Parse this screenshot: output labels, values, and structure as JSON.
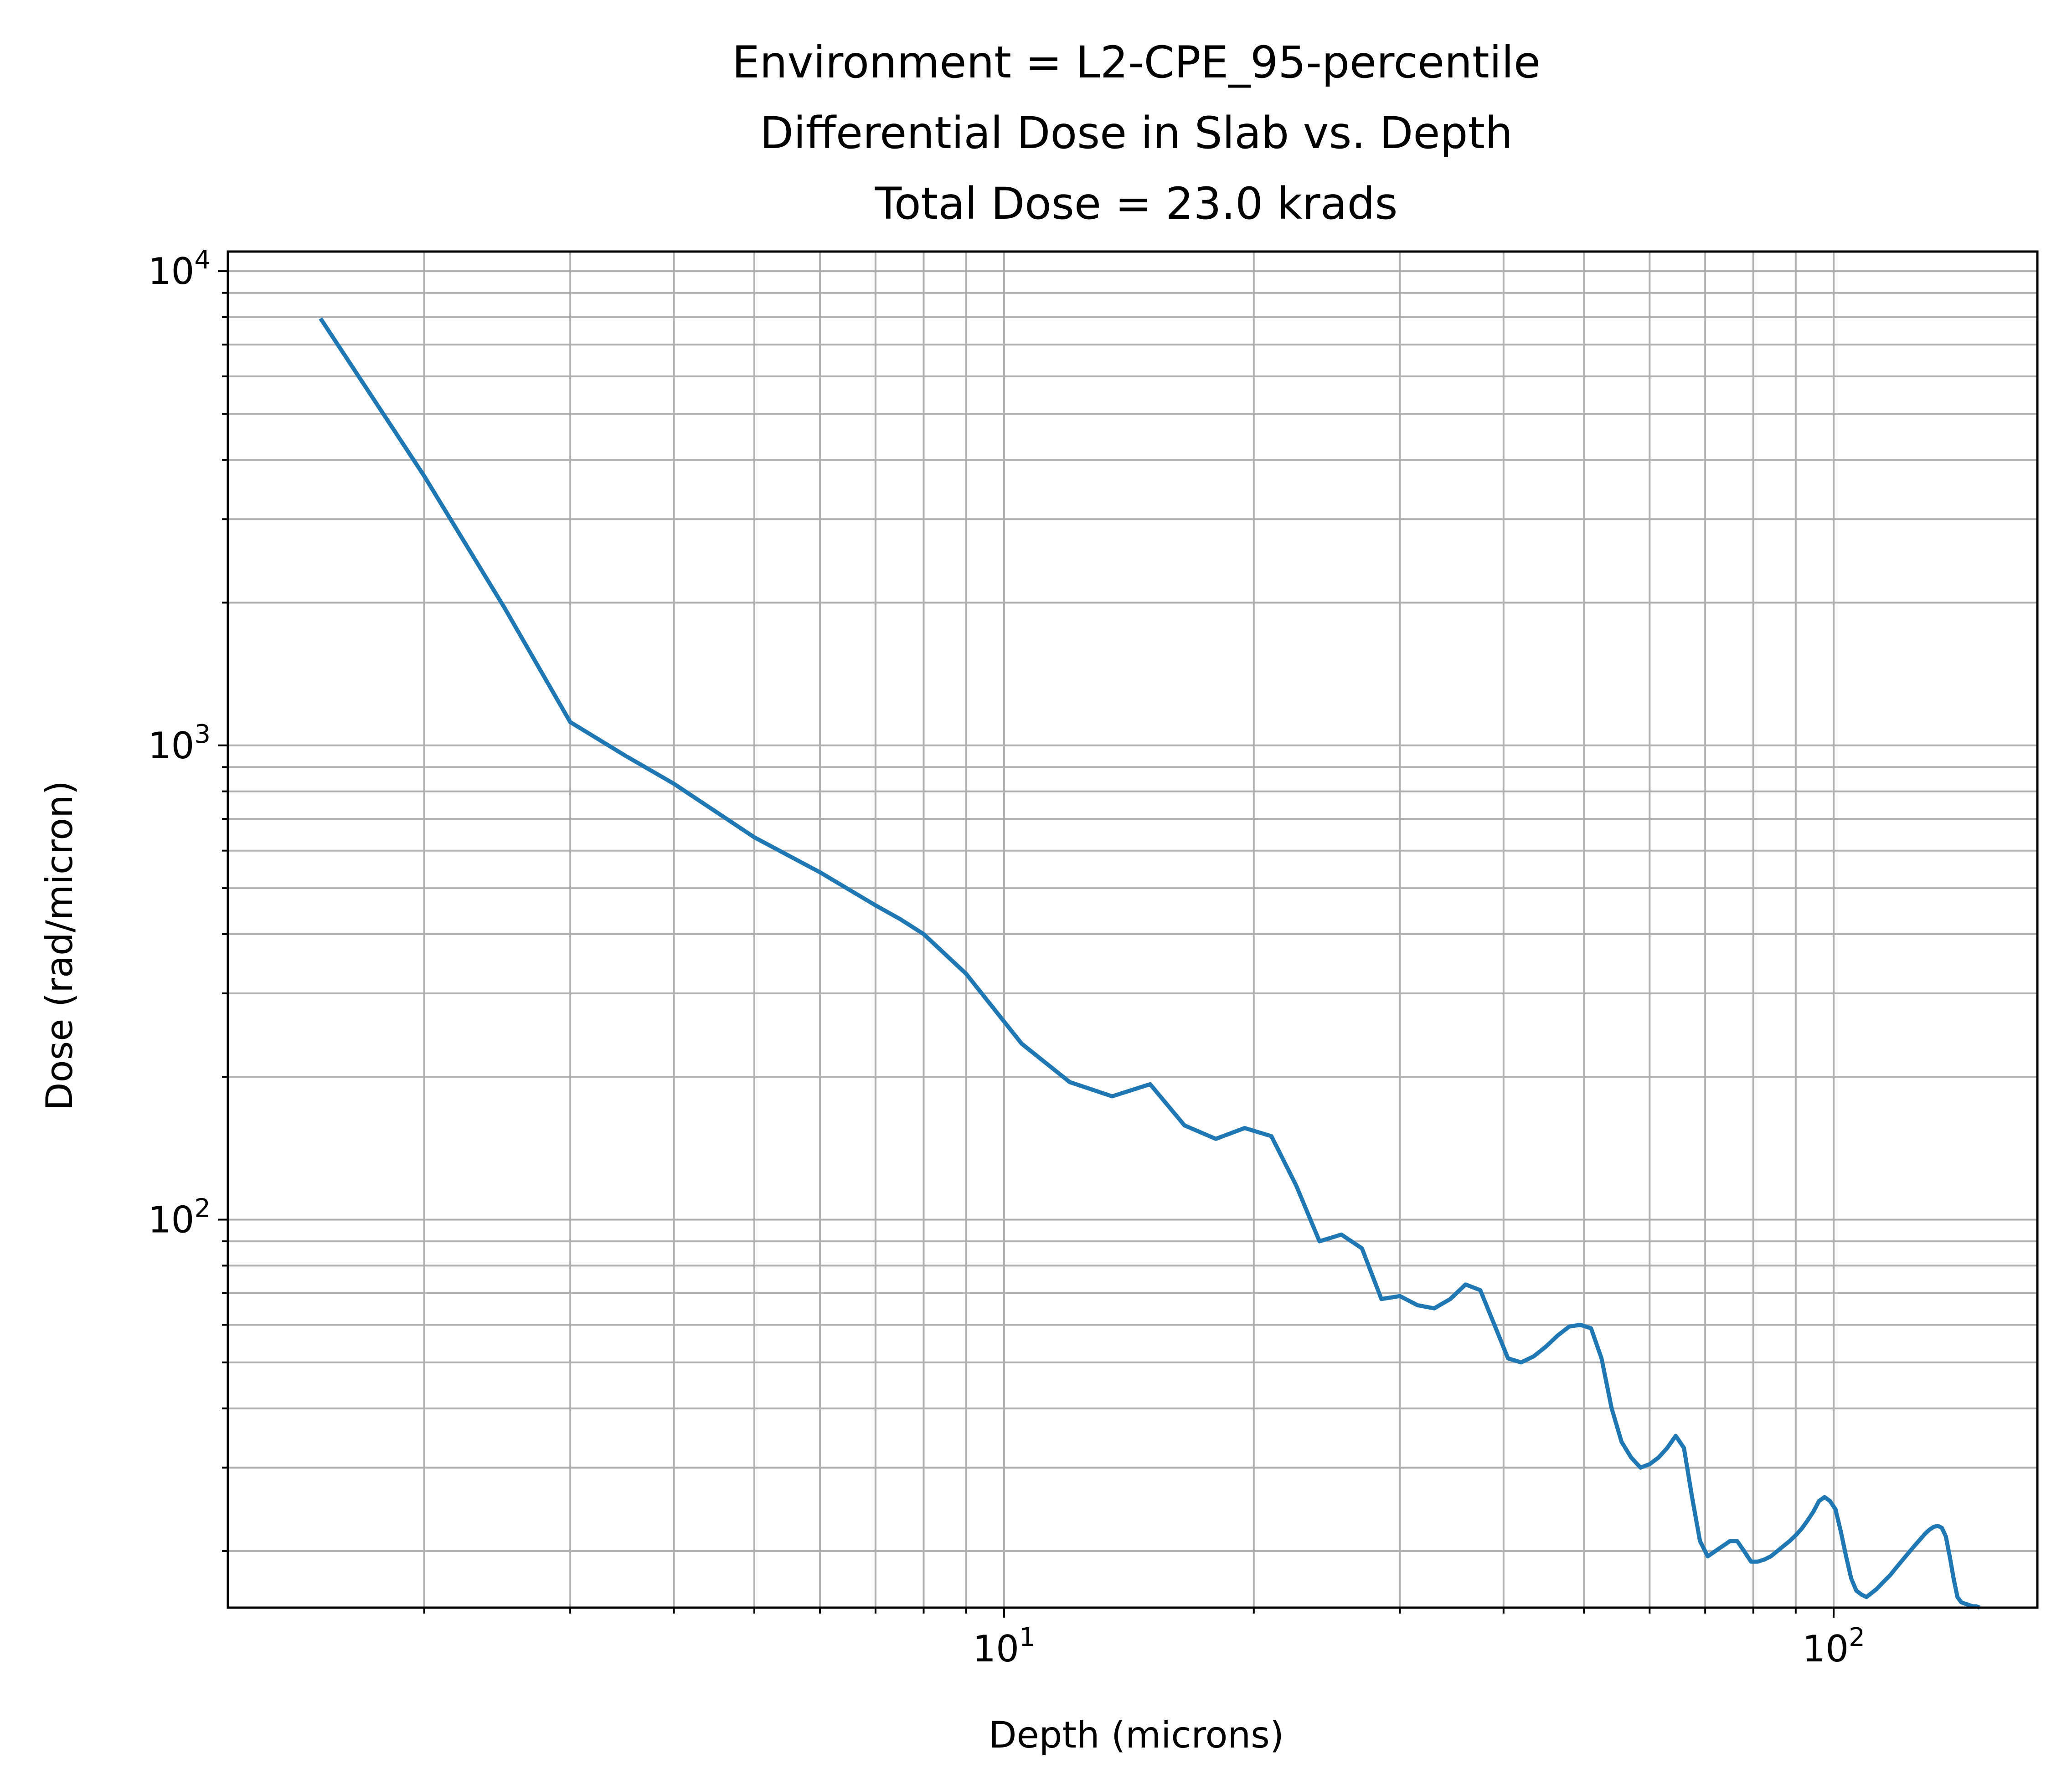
{
  "chart_data": {
    "type": "line",
    "title_lines": [
      "Environment = L2-CPE_95-percentile",
      "Differential Dose in Slab vs. Depth",
      "Total Dose = 23.0 krads"
    ],
    "xlabel": "Depth (microns)",
    "ylabel": "Dose (rad/micron)",
    "xscale": "log",
    "yscale": "log",
    "xlim": [
      1.16,
      176
    ],
    "ylim": [
      15.2,
      11000
    ],
    "grid": "major-and-minor",
    "x_ticks": [
      {
        "value": 10,
        "base": "10",
        "exp": "1"
      },
      {
        "value": 100,
        "base": "10",
        "exp": "2"
      }
    ],
    "y_ticks": [
      {
        "value": 100,
        "base": "10",
        "exp": "2"
      },
      {
        "value": 1000,
        "base": "10",
        "exp": "3"
      },
      {
        "value": 10000,
        "base": "10",
        "exp": "4"
      }
    ],
    "line_color": "#1f77b4",
    "grid_color": "#b0b0b0",
    "series": [
      {
        "x": [
          1.5,
          2.0,
          2.5,
          3.0,
          3.5,
          4.0,
          5.0,
          6.0,
          7.0,
          7.5,
          8.0,
          9.0,
          10.5,
          12.0,
          13.5,
          15.0,
          16.5,
          18.0,
          19.5,
          21.0,
          22.5,
          24.0,
          25.5,
          27.0,
          28.5,
          30.0,
          31.5,
          33.0,
          34.5,
          36.0,
          37.5,
          39.0,
          40.5,
          42.0,
          43.5,
          45.0,
          46.5,
          48.0,
          49.5,
          51.0,
          52.5,
          54.0,
          55.5,
          57.0,
          58.5,
          60.0,
          61.5,
          63.0,
          64.5,
          66.0,
          67.5,
          69.0,
          70.5,
          72.0,
          73.5,
          75.0,
          76.5,
          78.0,
          79.5,
          81.0,
          82.5,
          84.0,
          85.5,
          87.0,
          88.5,
          90.0,
          91.5,
          93.0,
          94.5,
          96.0,
          97.5,
          99.0,
          100.5,
          102.0,
          103.5,
          105.0,
          106.5,
          108.0,
          109.5,
          111.0,
          112.5,
          114.0,
          115.5,
          117.0,
          118.5,
          120.0,
          121.5,
          123.0,
          124.5,
          126.0,
          127.5,
          129.0,
          130.5,
          132.0,
          133.5,
          135.0,
          136.5,
          138.0,
          139.5,
          141.0,
          142.5,
          144.0,
          145.5,
          147.0,
          148.5,
          150.0
        ],
        "y": [
          7950,
          3700,
          1950,
          1120,
          950,
          830,
          640,
          540,
          460,
          430,
          400,
          330,
          235,
          195,
          182,
          193,
          158,
          148,
          156,
          150,
          118,
          90,
          93,
          87,
          68,
          69,
          66,
          65,
          68,
          73,
          71,
          60,
          51,
          50,
          51.5,
          54,
          57,
          59.5,
          60,
          59,
          51,
          40,
          34,
          31.5,
          30,
          30.5,
          31.5,
          33,
          35,
          33,
          26,
          21,
          19.5,
          20,
          20.5,
          21,
          21,
          20,
          19,
          19,
          19.2,
          19.5,
          20,
          20.5,
          21,
          21.6,
          22.3,
          23.2,
          24.2,
          25.5,
          26,
          25.5,
          24.5,
          22,
          19.5,
          17.5,
          16.5,
          16.2,
          16,
          16.3,
          16.6,
          17,
          17.4,
          17.8,
          18.3,
          18.8,
          19.3,
          19.8,
          20.3,
          20.8,
          21.3,
          21.8,
          22.2,
          22.5,
          22.6,
          22.4,
          21.5,
          19.5,
          17.5,
          16.0,
          15.6,
          15.5,
          15.4,
          15.3,
          15.3,
          15.2
        ]
      }
    ]
  }
}
